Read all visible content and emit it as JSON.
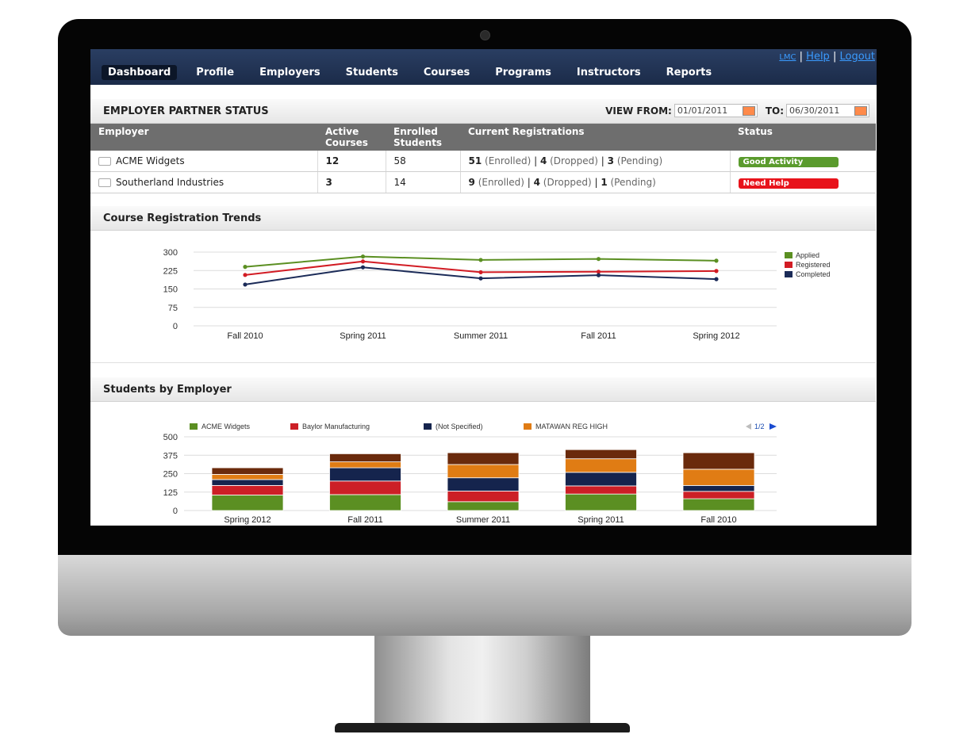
{
  "nav": {
    "tabs": [
      "Dashboard",
      "Profile",
      "Employers",
      "Students",
      "Courses",
      "Programs",
      "Instructors",
      "Reports"
    ],
    "active": "Dashboard",
    "top_links": {
      "lmc": "LMC",
      "help": "Help",
      "logout": "Logout",
      "sep": "|"
    }
  },
  "employer_status": {
    "title": "EMPLOYER PARTNER STATUS",
    "view_from_label": "VIEW FROM:",
    "from_date": "01/01/2011",
    "to_label": "TO:",
    "to_date": "06/30/2011",
    "columns": {
      "employer": "Employer",
      "active_1": "Active",
      "active_2": "Courses",
      "enrolled_1": "Enrolled",
      "enrolled_2": "Students",
      "registrations": "Current Registrations",
      "status": "Status"
    },
    "rows": [
      {
        "employer": "ACME Widgets",
        "active_courses": "12",
        "enrolled_students": "58",
        "enrolled": "51",
        "enrolled_label": "(Enrolled)",
        "dropped": "4",
        "dropped_label": "(Dropped)",
        "pending": "3",
        "pending_label": "(Pending)",
        "status": "Good Activity",
        "status_color": "#5a9b2d"
      },
      {
        "employer": "Southerland Industries",
        "active_courses": "3",
        "enrolled_students": "14",
        "enrolled": "9",
        "enrolled_label": "(Enrolled)",
        "dropped": "4",
        "dropped_label": "(Dropped)",
        "pending": "1",
        "pending_label": "(Pending)",
        "status": "Need Help",
        "status_color": "#e8131b"
      }
    ]
  },
  "trends": {
    "title": "Course Registration Trends"
  },
  "students": {
    "title": "Students by Employer",
    "pager": "1/2"
  },
  "chart_data": [
    {
      "type": "line",
      "categories": [
        "Fall 2010",
        "Spring 2011",
        "Summer 2011",
        "Fall 2011",
        "Spring 2012"
      ],
      "ylim": [
        0,
        300
      ],
      "yticks": [
        0,
        75,
        150,
        225,
        300
      ],
      "legend": "right",
      "grid": true,
      "series": [
        {
          "name": "Applied",
          "color": "#5b8f22",
          "values": [
            240,
            282,
            268,
            272,
            265
          ]
        },
        {
          "name": "Registered",
          "color": "#d21c24",
          "values": [
            207,
            262,
            218,
            220,
            223
          ]
        },
        {
          "name": "Completed",
          "color": "#1b2b58",
          "values": [
            168,
            238,
            193,
            206,
            190
          ]
        }
      ]
    },
    {
      "type": "bar",
      "stacked": true,
      "categories": [
        "Spring 2012",
        "Fall 2011",
        "Summer 2011",
        "Spring 2011",
        "Fall 2010"
      ],
      "ylim": [
        0,
        500
      ],
      "yticks": [
        0,
        125,
        250,
        375,
        500
      ],
      "legend": "top",
      "grid": true,
      "series": [
        {
          "name": "ACME Widgets",
          "color": "#5b8f22",
          "values": [
            105,
            108,
            60,
            112,
            80
          ]
        },
        {
          "name": "Baylor Manufacturing",
          "color": "#cc1f26",
          "values": [
            65,
            92,
            72,
            55,
            50
          ]
        },
        {
          "name": "(Not Specified)",
          "color": "#15244d",
          "values": [
            40,
            90,
            90,
            92,
            40
          ]
        },
        {
          "name": "MATAWAN REG HIGH",
          "color": "#e07c14",
          "values": [
            35,
            40,
            90,
            92,
            110
          ]
        },
        {
          "name": "",
          "color": "#6a2a0c",
          "values": [
            45,
            55,
            80,
            62,
            112
          ]
        }
      ]
    }
  ]
}
